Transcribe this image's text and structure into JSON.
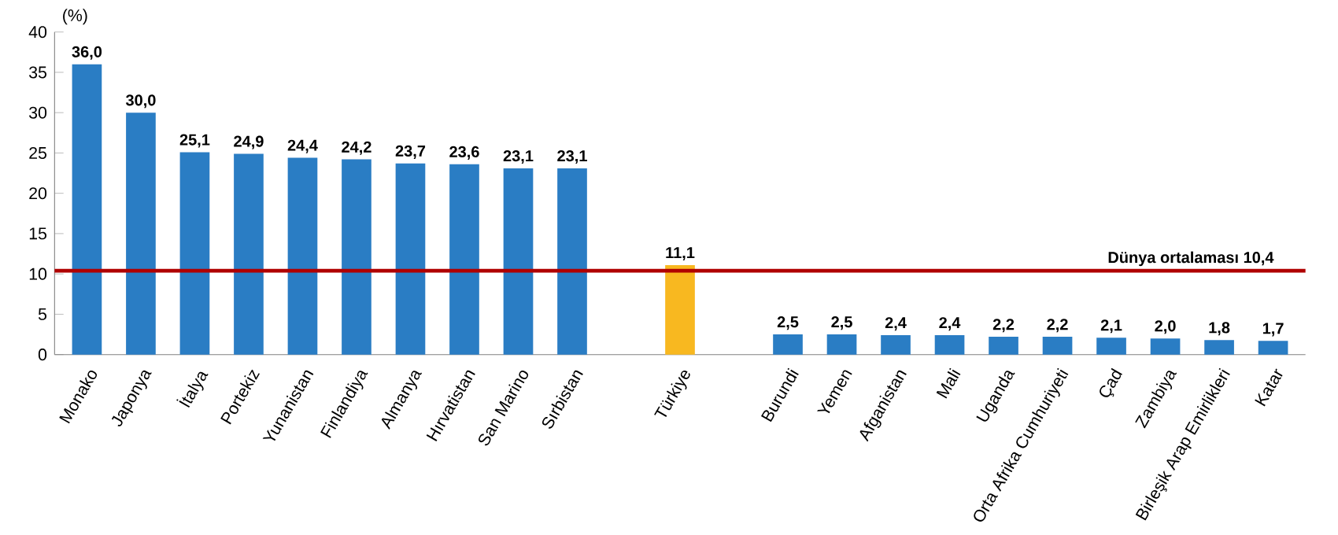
{
  "chart_data": {
    "type": "bar",
    "ylabel": "(%)",
    "categories": [
      "Monako",
      "Japonya",
      "İtalya",
      "Portekiz",
      "Yunanistan",
      "Finlandiya",
      "Almanya",
      "Hırvatistan",
      "San Marino",
      "Sırbistan",
      null,
      "Türkiye",
      null,
      "Burundi",
      "Yemen",
      "Afganistan",
      "Mali",
      "Uganda",
      "Orta Afrika Cumhuriyeti",
      "Çad",
      "Zambiya",
      "Birleşik Arap Emirlikleri",
      "Katar"
    ],
    "values": [
      36.0,
      30.0,
      25.1,
      24.9,
      24.4,
      24.2,
      23.7,
      23.6,
      23.1,
      23.1,
      null,
      11.1,
      null,
      2.5,
      2.5,
      2.4,
      2.4,
      2.2,
      2.2,
      2.1,
      2.0,
      1.8,
      1.7
    ],
    "value_labels": [
      "36,0",
      "30,0",
      "25,1",
      "24,9",
      "24,4",
      "24,2",
      "23,7",
      "23,6",
      "23,1",
      "23,1",
      null,
      "11,1",
      null,
      "2,5",
      "2,5",
      "2,4",
      "2,4",
      "2,2",
      "2,2",
      "2,1",
      "2,0",
      "1,8",
      "1,7"
    ],
    "colors": [
      "#2a7dc4",
      "#2a7dc4",
      "#2a7dc4",
      "#2a7dc4",
      "#2a7dc4",
      "#2a7dc4",
      "#2a7dc4",
      "#2a7dc4",
      "#2a7dc4",
      "#2a7dc4",
      null,
      "#f8b820",
      null,
      "#2a7dc4",
      "#2a7dc4",
      "#2a7dc4",
      "#2a7dc4",
      "#2a7dc4",
      "#2a7dc4",
      "#2a7dc4",
      "#2a7dc4",
      "#2a7dc4",
      "#2a7dc4"
    ],
    "ylim": [
      0,
      40
    ],
    "yticks": [
      0,
      5,
      10,
      15,
      20,
      25,
      30,
      35,
      40
    ],
    "ref_lines": [
      {
        "axis": "y",
        "value": 10.4,
        "label": "Dünya ortalaması  10,4",
        "color": "#b00000"
      }
    ],
    "grid": false
  }
}
